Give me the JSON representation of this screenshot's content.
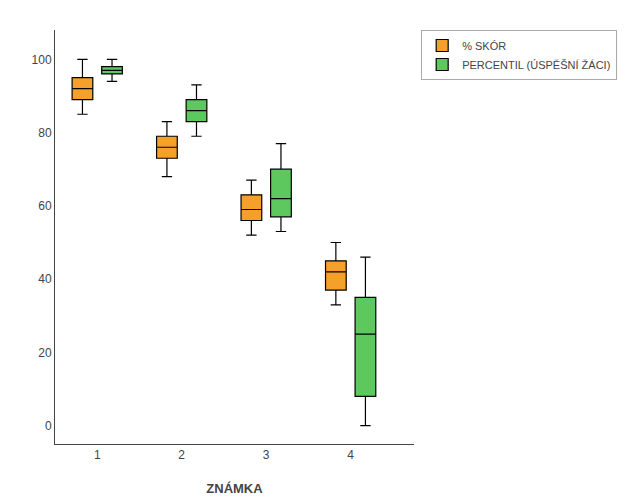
{
  "chart_data": {
    "type": "box",
    "xlabel": "ZNÁMKA",
    "x": [
      1,
      2,
      3,
      4
    ],
    "xlim": [
      0.5,
      4.75
    ],
    "xticks": [
      1,
      2,
      3,
      4
    ],
    "ylim": [
      -5,
      108
    ],
    "yticks": [
      0,
      20,
      40,
      60,
      80,
      100
    ],
    "grid": false,
    "legend": "upper right",
    "series": [
      {
        "name": "% SKÓR",
        "color": "#f5a02a",
        "whislo": [
          85,
          68,
          52,
          33
        ],
        "q1": [
          89,
          73,
          56,
          37
        ],
        "med": [
          92,
          76,
          59,
          42
        ],
        "q3": [
          95,
          79,
          63,
          45
        ],
        "whishi": [
          100,
          83,
          67,
          50
        ]
      },
      {
        "name": "PERCENTIL (ÚSPĚŠNÍ ŽÁCI)",
        "color": "#5dc85d",
        "whislo": [
          94,
          79,
          53,
          0
        ],
        "q1": [
          96,
          83,
          57,
          8
        ],
        "med": [
          97,
          86,
          62,
          25
        ],
        "q3": [
          98,
          89,
          70,
          35
        ],
        "whishi": [
          100,
          93,
          77,
          46
        ]
      }
    ]
  }
}
